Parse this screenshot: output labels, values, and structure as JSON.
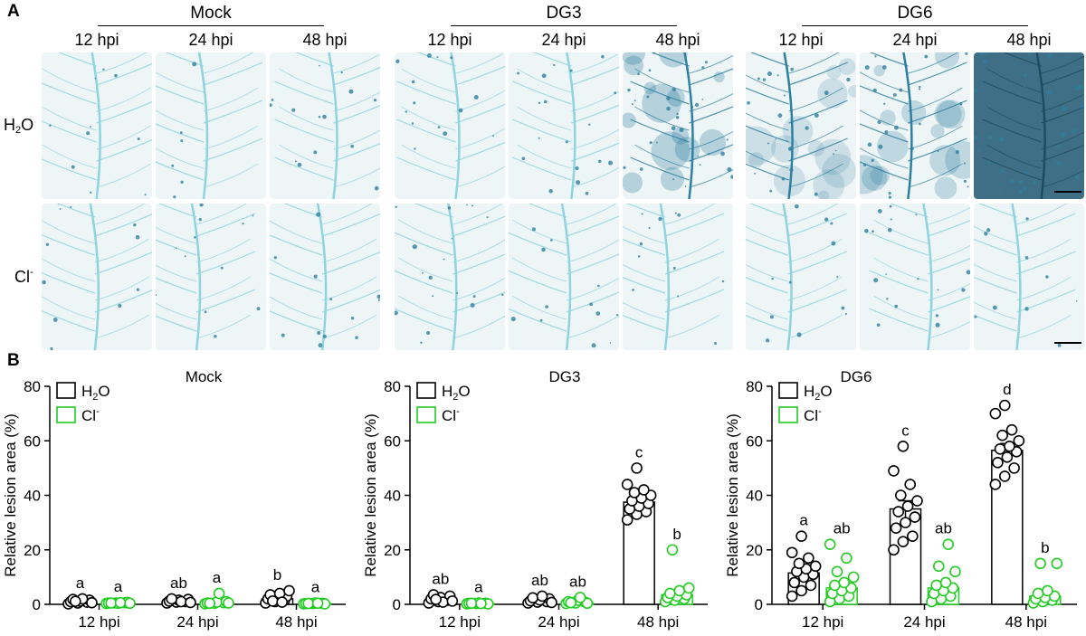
{
  "panel_a": {
    "letter": "A",
    "groups": [
      {
        "title": "Mock",
        "cols": [
          "12 hpi",
          "24 hpi",
          "48 hpi"
        ]
      },
      {
        "title": "DG3",
        "cols": [
          "12 hpi",
          "24 hpi",
          "48 hpi"
        ]
      },
      {
        "title": "DG6",
        "cols": [
          "12 hpi",
          "24 hpi",
          "48 hpi"
        ]
      }
    ],
    "rows": [
      {
        "main": "H",
        "sub": "2",
        "tail": "O"
      },
      {
        "main": "Cl",
        "sup": "-"
      }
    ],
    "stain": {
      "paper": "#eef5f6",
      "vein_light": "#8fd3e0",
      "vein_dark": "#2e7fa0",
      "heavy": "#3f6f86"
    }
  },
  "panel_b": {
    "letter": "B"
  },
  "chart_data": [
    {
      "type": "bar",
      "title": "Mock",
      "ylabel": "Relative lesion area (%)",
      "xlabel": "",
      "ylim": [
        0,
        80
      ],
      "yticks": [
        "0",
        "20",
        "40",
        "60",
        "80"
      ],
      "categories": [
        "12 hpi",
        "24 hpi",
        "48 hpi"
      ],
      "legend": {
        "position": "top-left",
        "entries": [
          {
            "main": "H",
            "sub": "2",
            "tail": "O"
          },
          {
            "main": "Cl",
            "sup": "-"
          }
        ]
      },
      "colors": [
        "#000000",
        "#22cc22"
      ],
      "series": [
        {
          "values": [
            1,
            1,
            2
          ],
          "sem": [
            0.3,
            0.3,
            0.8
          ],
          "letters": [
            "a",
            "ab",
            "b"
          ],
          "points": [
            [
              0.2,
              0.5,
              0.8,
              1,
              1.2,
              1.5,
              1.8,
              2,
              0.6,
              1.1
            ],
            [
              0.5,
              0.8,
              1,
              1.2,
              1.5,
              1.8,
              2,
              1,
              0.7
            ],
            [
              0.5,
              1,
              1.5,
              2,
              2.5,
              3,
              3.5,
              4,
              5,
              1.2,
              0.8
            ]
          ]
        },
        {
          "values": [
            0.5,
            0.7,
            0.3
          ],
          "sem": [
            0.1,
            0.3,
            0.1
          ],
          "letters": [
            "a",
            "a",
            "a"
          ],
          "points": [
            [
              0.3,
              0.5,
              0.6,
              0.5,
              0.4,
              0.7,
              0.5,
              0.6,
              0.4
            ],
            [
              0.2,
              0.4,
              0.6,
              0.5,
              0.8,
              1,
              0.4,
              4,
              0.5
            ],
            [
              0.2,
              0.3,
              0.4,
              0.3,
              0.5,
              0.2,
              0.3,
              0.4
            ]
          ]
        }
      ]
    },
    {
      "type": "bar",
      "title": "DG3",
      "ylabel": "Relative lesion area (%)",
      "xlabel": "",
      "ylim": [
        0,
        80
      ],
      "yticks": [
        "0",
        "20",
        "40",
        "60",
        "80"
      ],
      "categories": [
        "12 hpi",
        "24 hpi",
        "48 hpi"
      ],
      "legend": {
        "position": "top-left",
        "entries": [
          {
            "main": "H",
            "sub": "2",
            "tail": "O"
          },
          {
            "main": "Cl",
            "sup": "-"
          }
        ]
      },
      "colors": [
        "#000000",
        "#22cc22"
      ],
      "series": [
        {
          "values": [
            1.5,
            1,
            37.5
          ],
          "sem": [
            0.4,
            0.3,
            1.5
          ],
          "letters": [
            "ab",
            "ab",
            "c"
          ],
          "points": [
            [
              0.5,
              1,
              1.5,
              2,
              2.5,
              3,
              3.5,
              0.8,
              1.2,
              1.8
            ],
            [
              0.5,
              0.8,
              1,
              1.3,
              1.6,
              2,
              2.4,
              3,
              0.7
            ],
            [
              31,
              33,
              34,
              35,
              36,
              37,
              38,
              39,
              40,
              41,
              42,
              44,
              50
            ]
          ]
        },
        {
          "values": [
            0.3,
            0.5,
            3.5
          ],
          "sem": [
            0.1,
            0.2,
            1.5
          ],
          "letters": [
            "a",
            "ab",
            "b"
          ],
          "points": [
            [
              0.2,
              0.3,
              0.4,
              0.3,
              0.5,
              0.2,
              0.4,
              0.3
            ],
            [
              0.3,
              0.5,
              0.8,
              1,
              1.5,
              0.4,
              0.6,
              2.5
            ],
            [
              1,
              1.5,
              2,
              2.5,
              3,
              3.5,
              4,
              5,
              6,
              20
            ]
          ]
        }
      ]
    },
    {
      "type": "bar",
      "title": "DG6",
      "ylabel": "Relative lesion area (%)",
      "xlabel": "",
      "ylim": [
        0,
        80
      ],
      "yticks": [
        "0",
        "20",
        "40",
        "60",
        "80"
      ],
      "categories": [
        "12 hpi",
        "24 hpi",
        "48 hpi"
      ],
      "legend": {
        "position": "top-left",
        "entries": [
          {
            "main": "H",
            "sub": "2",
            "tail": "O"
          },
          {
            "main": "Cl",
            "sup": "-"
          }
        ]
      },
      "colors": [
        "#000000",
        "#22cc22"
      ],
      "series": [
        {
          "values": [
            11.5,
            35,
            56.5
          ],
          "sem": [
            1.8,
            3,
            2.5
          ],
          "letters": [
            "a",
            "c",
            "d"
          ],
          "points": [
            [
              3,
              5,
              7,
              8,
              10,
              11,
              12,
              13,
              14,
              15,
              17,
              19,
              25
            ],
            [
              20,
              23,
              25,
              28,
              30,
              32,
              34,
              36,
              38,
              40,
              44,
              49,
              58
            ],
            [
              44,
              47,
              50,
              52,
              54,
              56,
              57,
              58,
              60,
              62,
              64,
              70,
              73
            ]
          ]
        },
        {
          "values": [
            6,
            6,
            3
          ],
          "sem": [
            1.8,
            1.8,
            1.5
          ],
          "letters": [
            "ab",
            "ab",
            "b"
          ],
          "points": [
            [
              1,
              2,
              3,
              4,
              5,
              6,
              7,
              8,
              10,
              12,
              17,
              22
            ],
            [
              1,
              2,
              3,
              4,
              5,
              6,
              7,
              8,
              12,
              14,
              22
            ],
            [
              0.5,
              1,
              1.5,
              2,
              2.5,
              3,
              4,
              5,
              15,
              15
            ]
          ]
        }
      ]
    }
  ]
}
